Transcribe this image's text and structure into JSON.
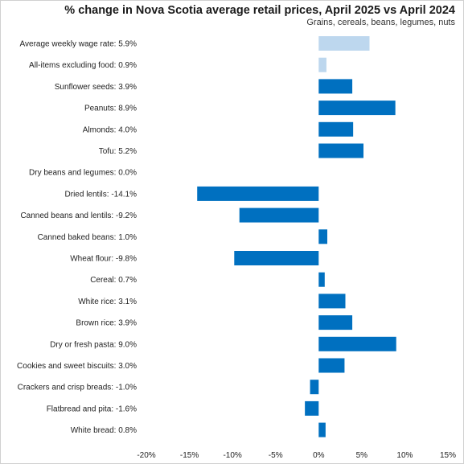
{
  "chart_data": {
    "type": "bar",
    "orientation": "horizontal",
    "title": "% change in Nova Scotia average retail prices, April 2025 vs April 2024",
    "subtitle": "Grains, cereals, beans, legumes, nuts",
    "xlim": [
      -20,
      15
    ],
    "xticks": [
      -20,
      -15,
      -10,
      -5,
      0,
      5,
      10,
      15
    ],
    "tick_suffix": "%",
    "grid": false,
    "colors": {
      "primary": "#0070C0",
      "highlight": "#BDD7EE"
    },
    "categories": [
      "Average weekly wage rate: 5.9%",
      "All-items excluding food: 0.9%",
      "Sunflower seeds: 3.9%",
      "Peanuts: 8.9%",
      "Almonds: 4.0%",
      "Tofu: 5.2%",
      "Dry beans and legumes: 0.0%",
      "Dried lentils: -14.1%",
      "Canned beans and lentils: -9.2%",
      "Canned baked beans: 1.0%",
      "Wheat flour: -9.8%",
      "Cereal: 0.7%",
      "White rice: 3.1%",
      "Brown rice: 3.9%",
      "Dry or fresh pasta: 9.0%",
      "Cookies and sweet biscuits: 3.0%",
      "Crackers and crisp breads: -1.0%",
      "Flatbread and pita: -1.6%",
      "White bread: 0.8%"
    ],
    "values": [
      5.9,
      0.9,
      3.9,
      8.9,
      4.0,
      5.2,
      0.0,
      -14.1,
      -9.2,
      1.0,
      -9.8,
      0.7,
      3.1,
      3.9,
      9.0,
      3.0,
      -1.0,
      -1.6,
      0.8
    ],
    "highlighted": [
      true,
      true,
      false,
      false,
      false,
      false,
      false,
      false,
      false,
      false,
      false,
      false,
      false,
      false,
      false,
      false,
      false,
      false,
      false
    ]
  }
}
